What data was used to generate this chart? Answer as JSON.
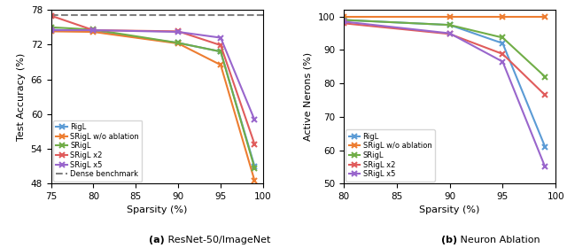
{
  "left": {
    "xlabel": "Sparsity (%)",
    "ylabel": "Test Accuracy (%)",
    "caption": "(a) ResNet-50/ImageNet",
    "xlim": [
      75,
      100
    ],
    "ylim": [
      48,
      78
    ],
    "yticks": [
      48,
      54,
      60,
      66,
      72,
      78
    ],
    "xticks": [
      75,
      80,
      85,
      90,
      95,
      100
    ],
    "dense_benchmark": 77.1,
    "series": {
      "RigL": {
        "color": "#5b9bd5",
        "x": [
          75,
          80,
          90,
          95,
          99
        ],
        "y": [
          74.6,
          74.3,
          72.3,
          70.8,
          51.0
        ]
      },
      "SRigL w/o ablation": {
        "color": "#ed7d31",
        "x": [
          75,
          80,
          90,
          95,
          99
        ],
        "y": [
          74.3,
          74.2,
          72.2,
          68.5,
          48.5
        ]
      },
      "SRigL": {
        "color": "#70ad47",
        "x": [
          75,
          80,
          90,
          95,
          99
        ],
        "y": [
          75.0,
          74.6,
          72.3,
          70.8,
          50.7
        ]
      },
      "SRigL x2": {
        "color": "#e05c5c",
        "x": [
          75,
          80,
          90,
          95,
          99
        ],
        "y": [
          77.0,
          74.5,
          74.3,
          71.9,
          54.8
        ]
      },
      "SRigL x5": {
        "color": "#9966cc",
        "x": [
          75,
          80,
          90,
          95,
          99
        ],
        "y": [
          74.5,
          74.5,
          74.2,
          73.2,
          59.0
        ]
      }
    }
  },
  "right": {
    "xlabel": "Sparsity (%)",
    "ylabel": "Active Nerons (%)",
    "caption": "(b) Neuron Ablation",
    "xlim": [
      80,
      100
    ],
    "ylim": [
      50,
      102
    ],
    "yticks": [
      50,
      60,
      70,
      80,
      90,
      100
    ],
    "xticks": [
      80,
      85,
      90,
      95,
      100
    ],
    "series": {
      "RigL": {
        "color": "#5b9bd5",
        "x": [
          80,
          90,
          95,
          99
        ],
        "y": [
          99.0,
          97.5,
          92.0,
          61.0
        ]
      },
      "SRigL w/o ablation": {
        "color": "#ed7d31",
        "x": [
          80,
          90,
          95,
          99
        ],
        "y": [
          100.0,
          100.0,
          100.0,
          100.0
        ]
      },
      "SRigL": {
        "color": "#70ad47",
        "x": [
          80,
          90,
          95,
          99
        ],
        "y": [
          99.0,
          97.5,
          93.7,
          82.0
        ]
      },
      "SRigL x2": {
        "color": "#e05c5c",
        "x": [
          80,
          90,
          95,
          99
        ],
        "y": [
          98.0,
          94.8,
          88.8,
          76.5
        ]
      },
      "SRigL x5": {
        "color": "#9966cc",
        "x": [
          80,
          90,
          95,
          99
        ],
        "y": [
          98.5,
          95.0,
          86.5,
          55.0
        ]
      }
    }
  },
  "legend_order": [
    "RigL",
    "SRigL w/o ablation",
    "SRigL",
    "SRigL x2",
    "SRigL x5"
  ],
  "dense_label": "Dense benchmark"
}
